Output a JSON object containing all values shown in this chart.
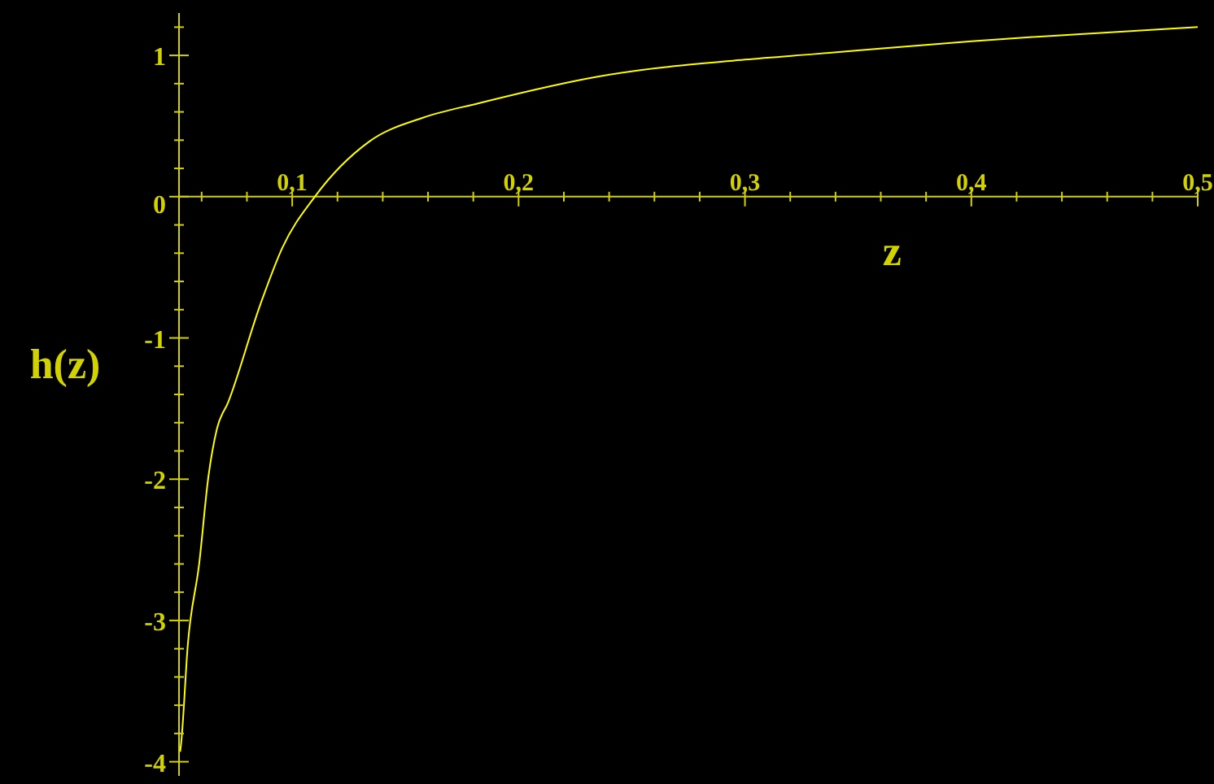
{
  "chart_data": {
    "type": "line",
    "xlabel": "z",
    "ylabel": "h(z)",
    "color": "#ffff00",
    "marker": "none",
    "x": [
      0.0505,
      0.051,
      0.0539,
      0.0589,
      0.063,
      0.0668,
      0.0716,
      0.086,
      0.0957,
      0.11,
      0.134,
      0.158,
      0.182,
      0.187,
      0.235,
      0.3,
      0.331,
      0.4,
      0.427,
      0.5
    ],
    "values": [
      -3.93,
      -3.86,
      -3.17,
      -2.6,
      -1.98,
      -1.64,
      -1.46,
      -0.76,
      -0.36,
      0,
      0.39,
      0.56,
      0.66,
      0.68,
      0.85,
      0.97,
      1.01,
      1.1,
      1.13,
      1.2
    ],
    "xlim": [
      0.05,
      0.5
    ],
    "xticks": [
      {
        "value": 0.06,
        "label": null
      },
      {
        "value": 0.08,
        "label": null
      },
      {
        "value": 0.1,
        "label": "0,1"
      },
      {
        "value": 0.12,
        "label": null
      },
      {
        "value": 0.14,
        "label": null
      },
      {
        "value": 0.16,
        "label": null
      },
      {
        "value": 0.18,
        "label": null
      },
      {
        "value": 0.2,
        "label": "0,2"
      },
      {
        "value": 0.22,
        "label": null
      },
      {
        "value": 0.24,
        "label": null
      },
      {
        "value": 0.26,
        "label": null
      },
      {
        "value": 0.28,
        "label": null
      },
      {
        "value": 0.3,
        "label": "0,3"
      },
      {
        "value": 0.32,
        "label": null
      },
      {
        "value": 0.34,
        "label": null
      },
      {
        "value": 0.36,
        "label": null
      },
      {
        "value": 0.38,
        "label": null
      },
      {
        "value": 0.4,
        "label": "0,4"
      },
      {
        "value": 0.42,
        "label": null
      },
      {
        "value": 0.44,
        "label": null
      },
      {
        "value": 0.46,
        "label": null
      },
      {
        "value": 0.48,
        "label": null
      },
      {
        "value": 0.5,
        "label": "0,5"
      }
    ],
    "ylim": [
      -4.1,
      1.3
    ],
    "yticks": [
      -4,
      {
        "value": -3.8,
        "label": null
      },
      {
        "value": -3.6,
        "label": null
      },
      {
        "value": -3.4,
        "label": null
      },
      {
        "value": -3.2,
        "label": null
      },
      -3,
      {
        "value": -2.8,
        "label": null
      },
      {
        "value": -2.6,
        "label": null
      },
      {
        "value": -2.4,
        "label": null
      },
      {
        "value": -2.2,
        "label": null
      },
      -2,
      {
        "value": -1.8,
        "label": null
      },
      {
        "value": -1.6,
        "label": null
      },
      {
        "value": -1.4,
        "label": null
      },
      {
        "value": -1.2,
        "label": null
      },
      -1,
      {
        "value": -0.8,
        "label": null
      },
      {
        "value": -0.6,
        "label": null
      },
      {
        "value": -0.4,
        "label": null
      },
      {
        "value": -0.2,
        "label": null
      },
      0,
      {
        "value": 0.2,
        "label": null
      },
      {
        "value": 0.4,
        "label": null
      },
      {
        "value": 0.6,
        "label": null
      },
      {
        "value": 0.8,
        "label": null
      },
      1,
      {
        "value": 1.2,
        "label": null
      }
    ]
  }
}
